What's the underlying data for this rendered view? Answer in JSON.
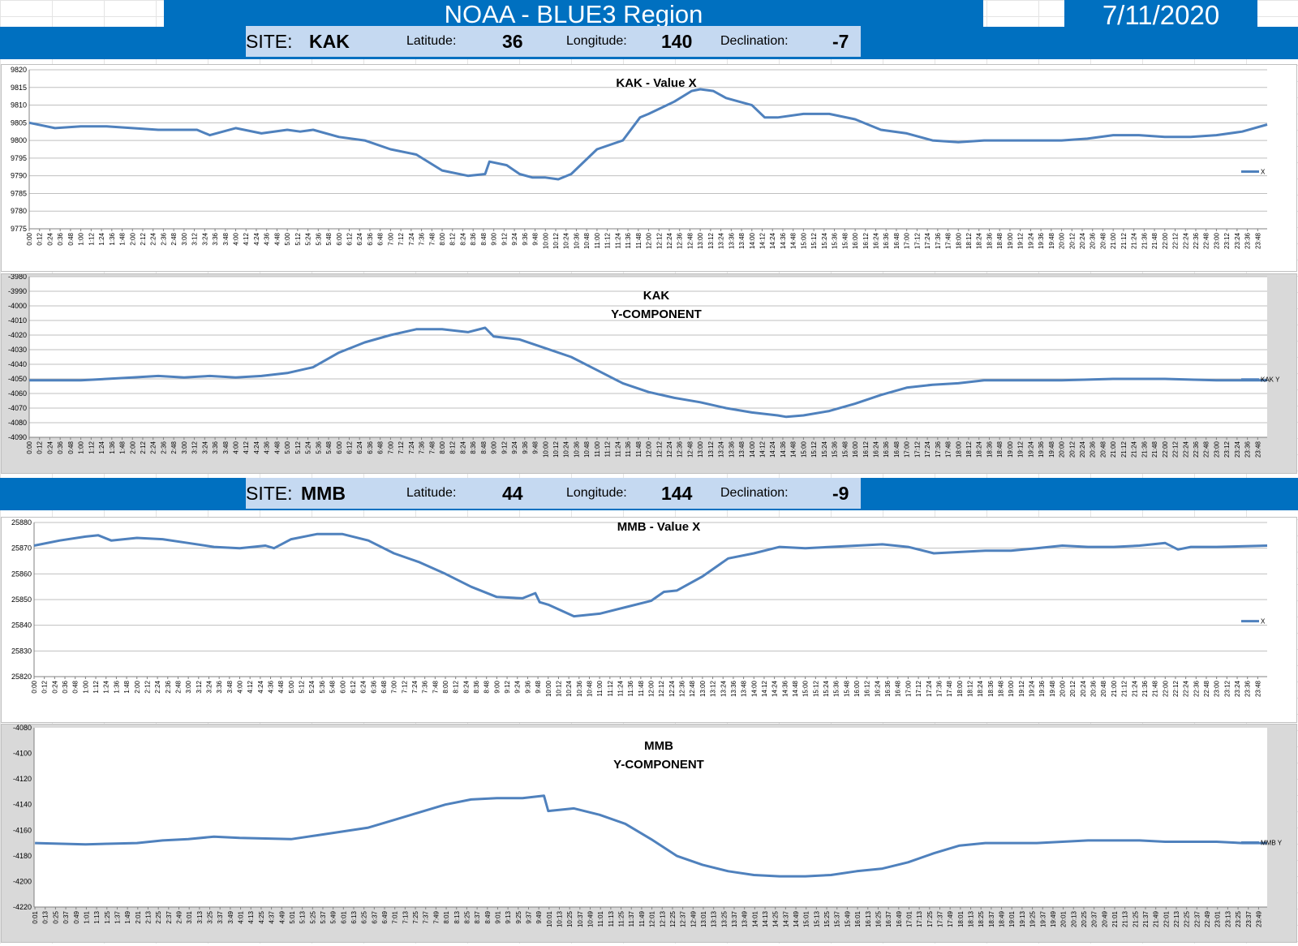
{
  "header": {
    "title": "NOAA - BLUE3 Region",
    "date": "7/11/2020"
  },
  "sites": [
    {
      "site_label": "SITE:",
      "site": "KAK",
      "lat_label": "Latitude:",
      "lat": "36",
      "lon_label": "Longitude:",
      "lon": "140",
      "dec_label": "Declination:",
      "dec": "-7"
    },
    {
      "site_label": "SITE:",
      "site": "MMB",
      "lat_label": "Latitude:",
      "lat": "44",
      "lon_label": "Longitude:",
      "lon": "144",
      "dec_label": "Declination:",
      "dec": "-9"
    }
  ],
  "colors": {
    "header_blue": "#0070c0",
    "site_bar": "#c5d9f1",
    "series": "#4f81bd",
    "frame_gray": "#d9d9d9"
  },
  "chart_data": [
    {
      "type": "line",
      "title": "KAK - Value X",
      "title_lines": [
        "KAK - Value X"
      ],
      "legend": "X",
      "legend_position": "right",
      "ylim": [
        9775,
        9820
      ],
      "ystep": 5,
      "grid": true,
      "x_start_min": 0,
      "x_step_min": 12,
      "x": [
        "0:00",
        "0:30",
        "1:00",
        "1:30",
        "2:00",
        "2:30",
        "3:00",
        "3:15",
        "3:30",
        "4:00",
        "4:30",
        "5:00",
        "5:15",
        "5:30",
        "6:00",
        "6:30",
        "7:00",
        "7:30",
        "8:00",
        "8:30",
        "8:50",
        "8:55",
        "9:15",
        "9:30",
        "9:45",
        "10:00",
        "10:15",
        "10:30",
        "11:00",
        "11:30",
        "11:50",
        "12:00",
        "12:30",
        "12:50",
        "13:00",
        "13:15",
        "13:30",
        "14:00",
        "14:15",
        "14:30",
        "15:00",
        "15:30",
        "16:00",
        "16:30",
        "17:00",
        "17:30",
        "18:00",
        "18:30",
        "19:00",
        "19:30",
        "20:00",
        "20:30",
        "21:00",
        "21:30",
        "22:00",
        "22:30",
        "23:00",
        "23:30",
        "23:59"
      ],
      "y": [
        9805,
        9803.5,
        9804,
        9804,
        9803.5,
        9803,
        9803,
        9803,
        9801.5,
        9803.5,
        9802,
        9803,
        9802.5,
        9803,
        9801,
        9800,
        9797.5,
        9796,
        9791.5,
        9790,
        9790.5,
        9794,
        9793,
        9790.5,
        9789.5,
        9789.5,
        9789,
        9790.5,
        9797.5,
        9800,
        9806.5,
        9807.5,
        9811,
        9814,
        9814.5,
        9814,
        9812,
        9810,
        9806.5,
        9806.5,
        9807.5,
        9807.5,
        9806,
        9803,
        9802,
        9800,
        9799.5,
        9800,
        9800,
        9800,
        9800,
        9800.5,
        9801.5,
        9801.5,
        9801,
        9801,
        9801.5,
        9802.5,
        9804.5
      ]
    },
    {
      "type": "line",
      "title": "KAK Y-COMPONENT",
      "title_lines": [
        "KAK",
        "Y-COMPONENT"
      ],
      "legend": "KAK Y",
      "legend_position": "right",
      "ylim": [
        -4090,
        -3980
      ],
      "ystep": 10,
      "grid": true,
      "x_start_min": 0,
      "x_step_min": 12,
      "x": [
        "0:00",
        "1:00",
        "2:00",
        "2:30",
        "3:00",
        "3:30",
        "4:00",
        "4:30",
        "5:00",
        "5:30",
        "6:00",
        "6:30",
        "7:00",
        "7:30",
        "8:00",
        "8:30",
        "8:50",
        "9:00",
        "9:30",
        "10:00",
        "10:30",
        "11:00",
        "11:30",
        "12:00",
        "12:30",
        "13:00",
        "13:30",
        "14:00",
        "14:30",
        "14:40",
        "15:00",
        "15:30",
        "16:00",
        "16:30",
        "17:00",
        "17:30",
        "18:00",
        "18:30",
        "19:00",
        "20:00",
        "21:00",
        "22:00",
        "23:00",
        "23:59"
      ],
      "y": [
        -4051,
        -4051,
        -4049,
        -4048,
        -4049,
        -4048,
        -4049,
        -4048,
        -4046,
        -4042,
        -4032,
        -4025,
        -4020,
        -4016,
        -4016,
        -4018,
        -4015,
        -4021,
        -4023,
        -4029,
        -4035,
        -4044,
        -4053,
        -4059,
        -4063,
        -4066,
        -4070,
        -4073,
        -4075,
        -4076,
        -4075,
        -4072,
        -4067,
        -4061,
        -4056,
        -4054,
        -4053,
        -4051,
        -4051,
        -4051,
        -4050,
        -4050,
        -4051,
        -4051
      ]
    },
    {
      "type": "line",
      "title": "MMB - Value X",
      "title_lines": [
        "MMB - Value X"
      ],
      "legend": "X",
      "legend_position": "right",
      "ylim": [
        25820,
        25880
      ],
      "ystep": 10,
      "grid": true,
      "x_start_min": 0,
      "x_step_min": 12,
      "x": [
        "0:00",
        "0:30",
        "1:00",
        "1:15",
        "1:30",
        "2:00",
        "2:30",
        "3:00",
        "3:30",
        "4:00",
        "4:30",
        "4:40",
        "5:00",
        "5:30",
        "6:00",
        "6:30",
        "7:00",
        "7:30",
        "8:00",
        "8:30",
        "9:00",
        "9:30",
        "9:45",
        "9:50",
        "10:00",
        "10:30",
        "11:00",
        "11:30",
        "12:00",
        "12:15",
        "12:30",
        "13:00",
        "13:30",
        "14:00",
        "14:30",
        "15:00",
        "16:00",
        "16:30",
        "17:00",
        "17:30",
        "18:00",
        "18:30",
        "19:00",
        "19:30",
        "20:00",
        "20:30",
        "21:00",
        "21:30",
        "22:00",
        "22:15",
        "22:30",
        "23:00",
        "23:59"
      ],
      "y": [
        25871,
        25873,
        25874.5,
        25875,
        25873,
        25874,
        25873.5,
        25872,
        25870.5,
        25870,
        25871,
        25870,
        25873.5,
        25875.5,
        25875.5,
        25873,
        25868,
        25864.5,
        25860,
        25855,
        25851,
        25850.5,
        25852.5,
        25849,
        25848,
        25843.5,
        25844.5,
        25847,
        25849.5,
        25853,
        25853.5,
        25859,
        25866,
        25868,
        25870.5,
        25870,
        25871,
        25871.5,
        25870.5,
        25868,
        25868.5,
        25869,
        25869,
        25870,
        25871,
        25870.5,
        25870.5,
        25871,
        25872,
        25869.5,
        25870.5,
        25870.5,
        25871
      ]
    },
    {
      "type": "line",
      "title": "MMB Y-COMPONENT",
      "title_lines": [
        "MMB",
        "Y-COMPONENT"
      ],
      "legend": "MMB Y",
      "legend_position": "right",
      "ylim": [
        -4220,
        -4080
      ],
      "ystep": 20,
      "grid": false,
      "x_start_min": 1,
      "x_step_min": 12,
      "x": [
        "0:01",
        "1:00",
        "2:00",
        "2:30",
        "3:00",
        "3:30",
        "4:00",
        "5:00",
        "5:30",
        "6:00",
        "6:30",
        "7:00",
        "7:30",
        "8:00",
        "8:30",
        "9:00",
        "9:30",
        "9:55",
        "10:00",
        "10:30",
        "11:00",
        "11:30",
        "12:00",
        "12:30",
        "13:00",
        "13:30",
        "14:00",
        "14:30",
        "15:00",
        "15:30",
        "16:00",
        "16:30",
        "17:00",
        "17:30",
        "18:00",
        "18:30",
        "19:00",
        "19:30",
        "20:00",
        "20:30",
        "21:00",
        "21:30",
        "22:00",
        "22:30",
        "23:00",
        "23:30",
        "23:59"
      ],
      "y": [
        -4170,
        -4171,
        -4170,
        -4168,
        -4167,
        -4165,
        -4166,
        -4167,
        -4164,
        -4161,
        -4158,
        -4152,
        -4146,
        -4140,
        -4136,
        -4135,
        -4135,
        -4133,
        -4145,
        -4143,
        -4148,
        -4155,
        -4167,
        -4180,
        -4187,
        -4192,
        -4195,
        -4196,
        -4196,
        -4195,
        -4192,
        -4190,
        -4185,
        -4178,
        -4172,
        -4170,
        -4170,
        -4170,
        -4169,
        -4168,
        -4168,
        -4168,
        -4169,
        -4169,
        -4169,
        -4170,
        -4170
      ]
    }
  ]
}
